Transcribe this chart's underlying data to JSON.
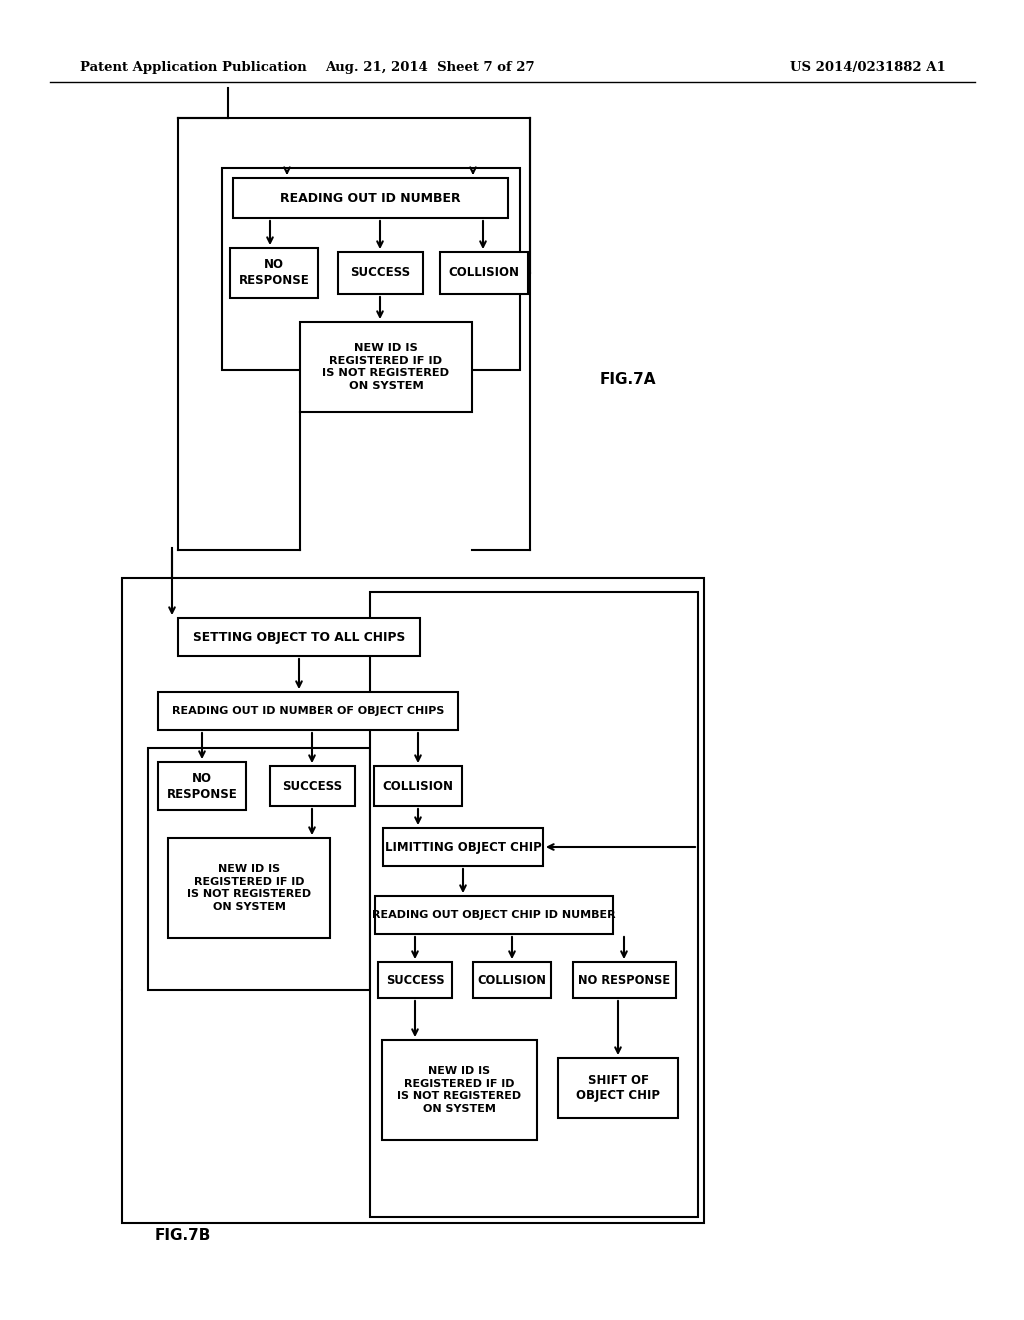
{
  "bg_color": "#ffffff",
  "header_left": "Patent Application Publication",
  "header_mid": "Aug. 21, 2014  Sheet 7 of 27",
  "header_right": "US 2014/0231882 A1",
  "fig7a_label": "FIG.7A",
  "fig7b_label": "FIG.7B",
  "lw": 1.5
}
